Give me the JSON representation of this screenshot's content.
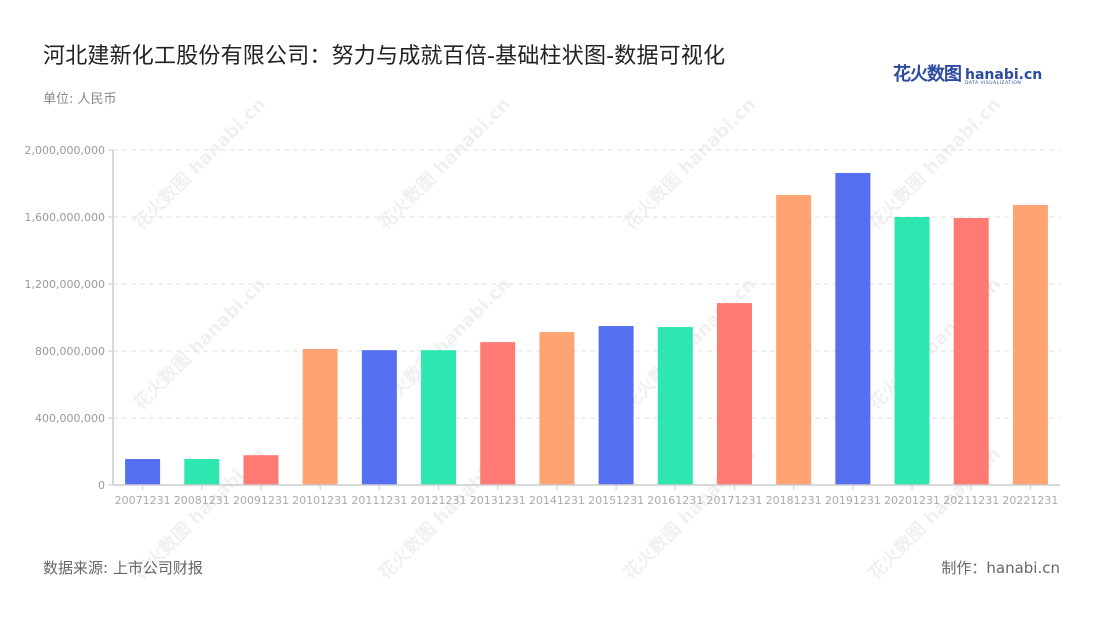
{
  "header": {
    "title": "河北建新化工股份有限公司：努力与成就百倍-基础柱状图-数据可视化",
    "unit": "单位: 人民币",
    "logo_cn": "花火数图",
    "logo_en": "hanabi.cn",
    "logo_sub": "DATA VISUALIZATION"
  },
  "footer": {
    "source": "数据来源: 上市公司财报",
    "credit": "制作：hanabi.cn"
  },
  "watermark": "花火数图 hanabi.cn",
  "colors": [
    "#5470f0",
    "#2de6b0",
    "#ff7a72",
    "#ffa372"
  ],
  "chart_data": {
    "type": "bar",
    "title": "河北建新化工股份有限公司：努力与成就百倍-基础柱状图-数据可视化",
    "xlabel": "",
    "ylabel": "单位: 人民币",
    "ylim": [
      0,
      2000000000
    ],
    "yticks": [
      0,
      400000000,
      800000000,
      1200000000,
      1600000000,
      2000000000
    ],
    "ytick_labels": [
      "0",
      "400,000,000",
      "800,000,000",
      "1,200,000,000",
      "1,600,000,000",
      "2,000,000,000"
    ],
    "grid": true,
    "legend": false,
    "categories": [
      "20071231",
      "20081231",
      "20091231",
      "20101231",
      "20111231",
      "20121231",
      "20131231",
      "20141231",
      "20151231",
      "20161231",
      "20171231",
      "20181231",
      "20191231",
      "20201231",
      "20211231",
      "20221231"
    ],
    "values": [
      155000000,
      155000000,
      178000000,
      812000000,
      805000000,
      805000000,
      853000000,
      913000000,
      949000000,
      943000000,
      1086000000,
      1731000000,
      1863000000,
      1600000000,
      1594000000,
      1672000000
    ]
  }
}
